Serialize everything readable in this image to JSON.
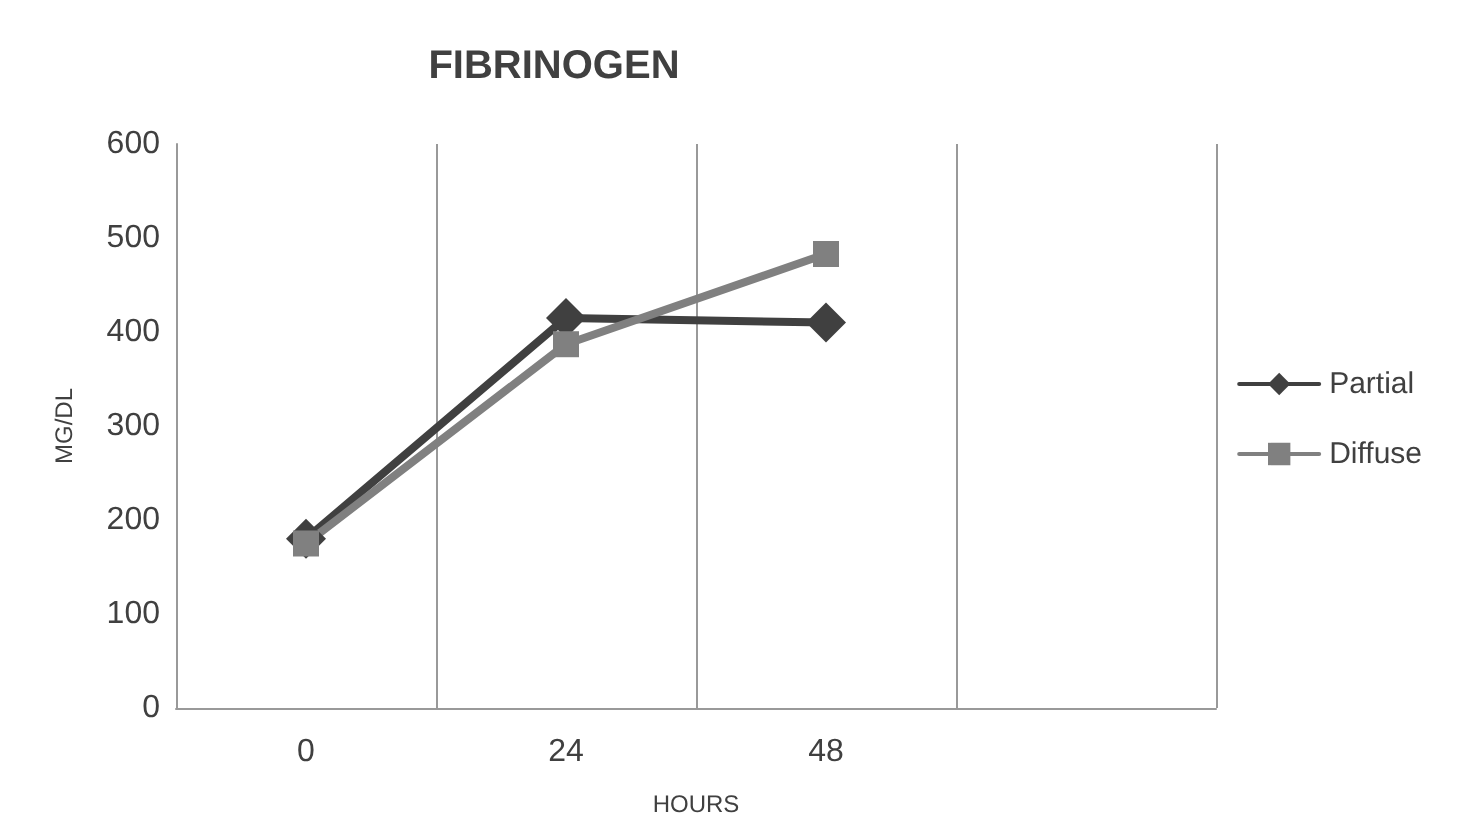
{
  "chart_data": {
    "type": "line",
    "title": "FIBRINOGEN",
    "xlabel": "HOURS",
    "ylabel": "MG/DL",
    "categories": [
      "0",
      "24",
      "48",
      null
    ],
    "series": [
      {
        "name": "Partial",
        "color": "#404040",
        "marker": "diamond",
        "values": [
          180,
          415,
          410,
          null
        ]
      },
      {
        "name": "Diffuse",
        "color": "#808080",
        "marker": "square",
        "values": [
          175,
          387,
          483,
          null
        ]
      }
    ],
    "ylim": [
      0,
      600
    ],
    "yticks": [
      0,
      100,
      200,
      300,
      400,
      500,
      600
    ],
    "grid": "x",
    "legend": "right",
    "line_style": "solid"
  }
}
